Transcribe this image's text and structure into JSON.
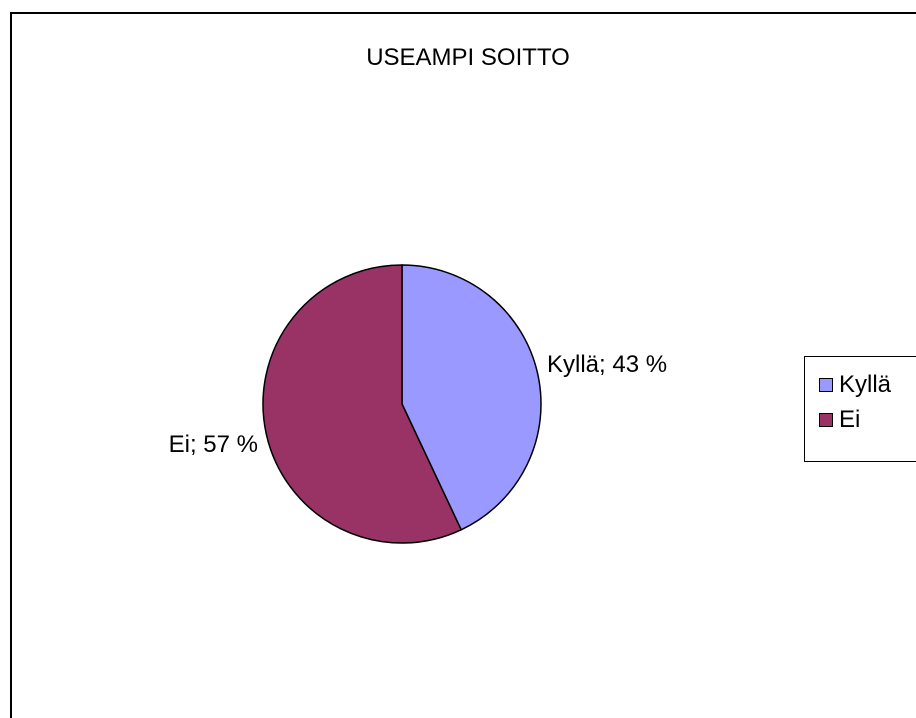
{
  "chart_data": {
    "type": "pie",
    "title": "USEAMPI SOITTO",
    "categories": [
      "Kyllä",
      "Ei"
    ],
    "values": [
      43,
      57
    ],
    "data_labels": [
      "Kyllä; 43 %",
      "Ei; 57 %"
    ],
    "colors": [
      "#9999ff",
      "#993366"
    ],
    "legend": {
      "position": "right",
      "entries": [
        "Kyllä",
        "Ei"
      ]
    }
  }
}
